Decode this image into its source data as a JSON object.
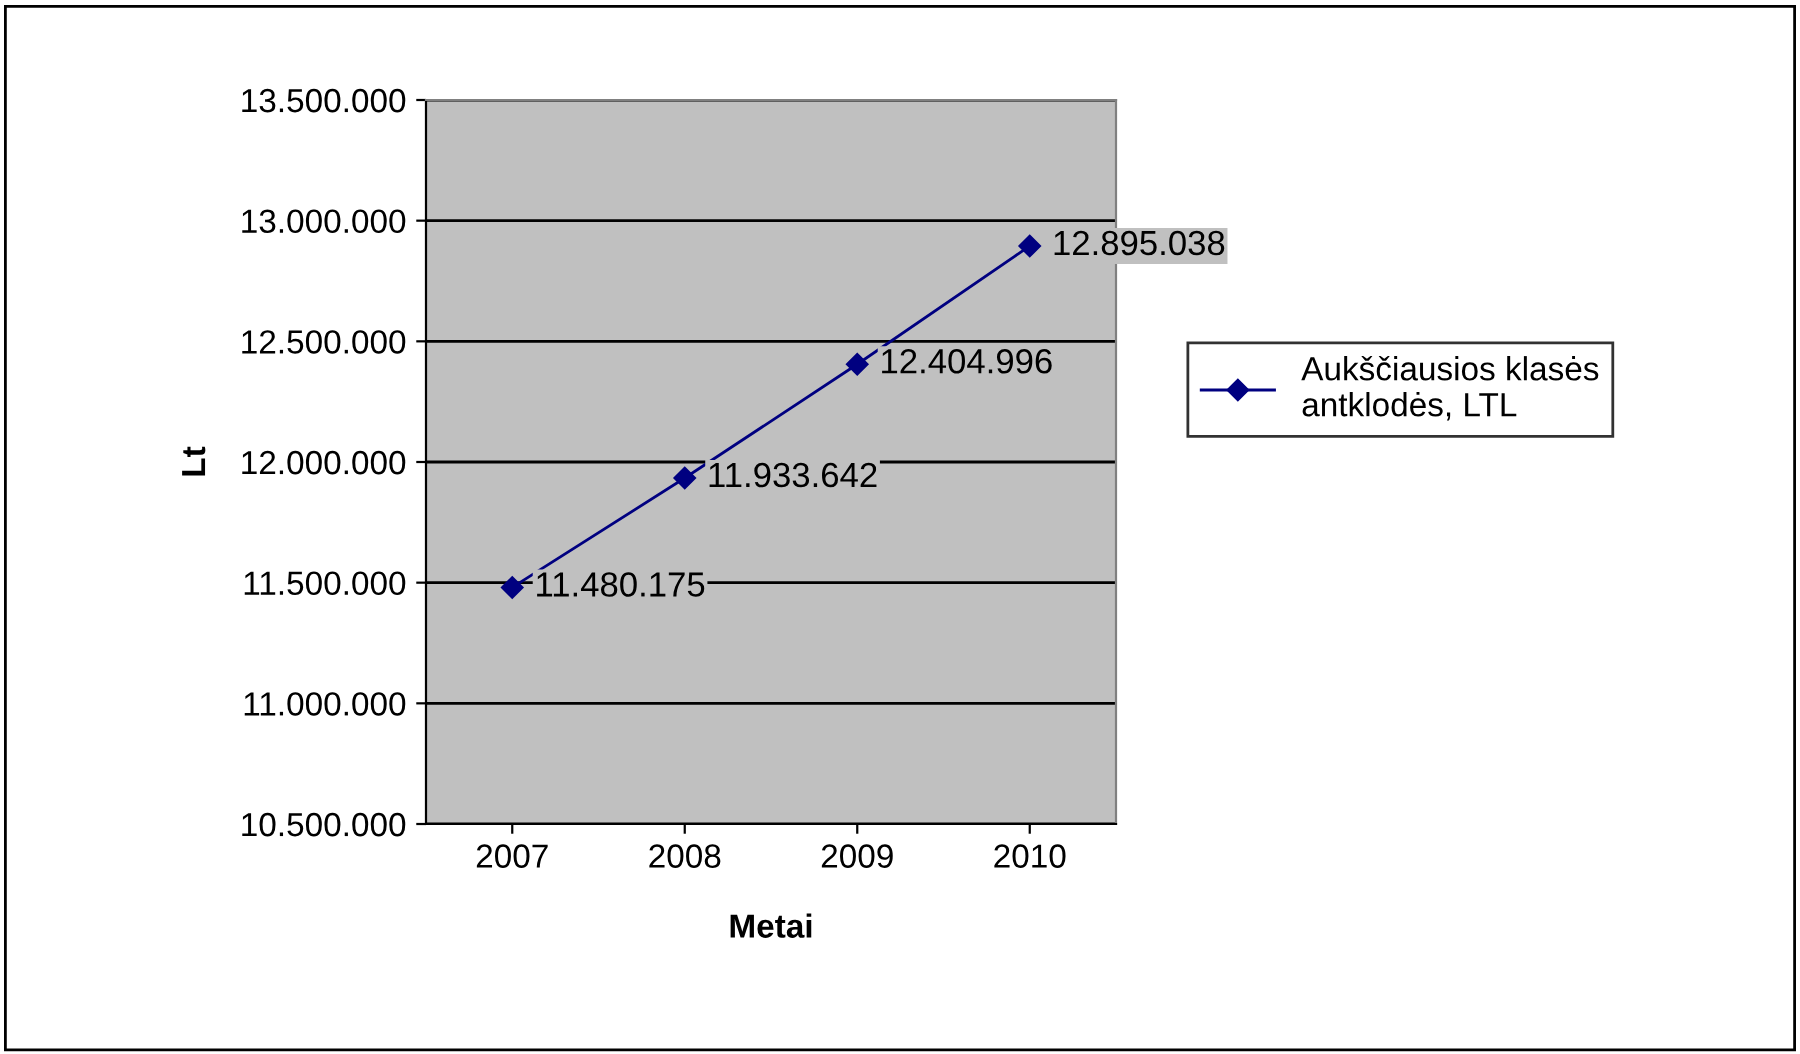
{
  "chart_data": {
    "type": "line",
    "xlabel": "Metai",
    "ylabel": "Lt",
    "categories": [
      "2007",
      "2008",
      "2009",
      "2010"
    ],
    "series": [
      {
        "name": "Aukščiausios klasės\nantklodės, LTL",
        "color": "#000080",
        "values": [
          11480175,
          11933642,
          12404996,
          12895038
        ],
        "value_labels": [
          "11.480.175",
          "11.933.642",
          "12.404.996",
          "12.895.038"
        ]
      }
    ],
    "ylim": [
      10500000,
      13500000
    ],
    "yticks": [
      {
        "value": 10500000,
        "label": "10.500.000"
      },
      {
        "value": 11000000,
        "label": "11.000.000"
      },
      {
        "value": 11500000,
        "label": "11.500.000"
      },
      {
        "value": 12000000,
        "label": "12.000.000"
      },
      {
        "value": 12500000,
        "label": "12.500.000"
      },
      {
        "value": 13000000,
        "label": "13.000.000"
      },
      {
        "value": 13500000,
        "label": "13.500.000"
      }
    ],
    "grid": "y",
    "legend": "right",
    "marker": "diamond",
    "line_style": "solid"
  }
}
